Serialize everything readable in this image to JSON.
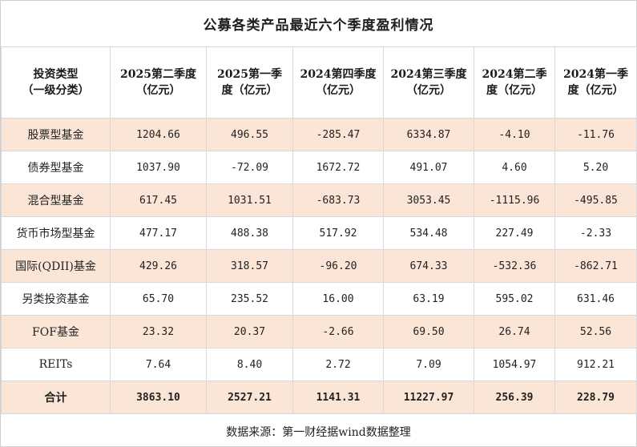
{
  "title": "公募各类产品最近六个季度盈利情况",
  "headers": [
    "投资类型\n（一级分类）",
    "2025第二季度\n（亿元）",
    "2025第一季\n度（亿元）",
    "2024第四季度\n（亿元）",
    "2024第三季度\n（亿元）",
    "2024第二季\n度（亿元）",
    "2024第一季\n度（亿元）"
  ],
  "rows": [
    {
      "name": "股票型基金",
      "values": [
        "1204.66",
        "496.55",
        "-285.47",
        "6334.87",
        "-4.10",
        "-11.76"
      ]
    },
    {
      "name": "债券型基金",
      "values": [
        "1037.90",
        "-72.09",
        "1672.72",
        "491.07",
        "4.60",
        "5.20"
      ]
    },
    {
      "name": "混合型基金",
      "values": [
        "617.45",
        "1031.51",
        "-683.73",
        "3053.45",
        "-1115.96",
        "-495.85"
      ]
    },
    {
      "name": "货币市场型基金",
      "values": [
        "477.17",
        "488.38",
        "517.92",
        "534.48",
        "227.49",
        "-2.33"
      ]
    },
    {
      "name": "国际(QDII)基金",
      "values": [
        "429.26",
        "318.57",
        "-96.20",
        "674.33",
        "-532.36",
        "-862.71"
      ]
    },
    {
      "name": "另类投资基金",
      "values": [
        "65.70",
        "235.52",
        "16.00",
        "63.19",
        "595.02",
        "631.46"
      ]
    },
    {
      "name": "FOF基金",
      "values": [
        "23.32",
        "20.37",
        "-2.66",
        "69.50",
        "26.74",
        "52.56"
      ]
    },
    {
      "name": "REITs",
      "values": [
        "7.64",
        "8.40",
        "2.72",
        "7.09",
        "1054.97",
        "912.21"
      ]
    }
  ],
  "total": {
    "name": "合计",
    "values": [
      "3863.10",
      "2527.21",
      "1141.31",
      "11227.97",
      "256.39",
      "228.79"
    ]
  },
  "source": "数据来源：第一财经据wind数据整理",
  "colors": {
    "shade": "#fbe5d6",
    "border": "#d9d9d9",
    "background": "#ffffff"
  }
}
